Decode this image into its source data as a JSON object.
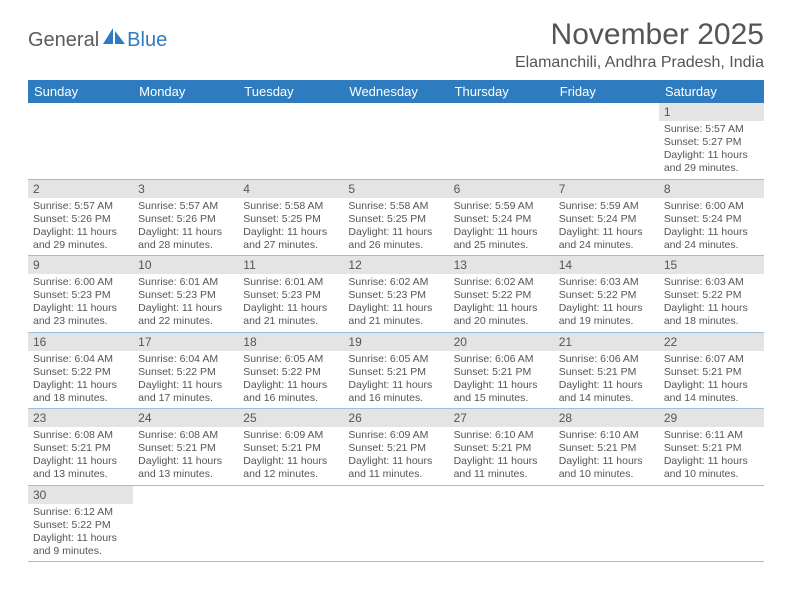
{
  "brand": {
    "part1": "General",
    "part2": "Blue"
  },
  "title": "November 2025",
  "location": "Elamanchili, Andhra Pradesh, India",
  "colors": {
    "header_bg": "#2f7bbf",
    "header_text": "#ffffff",
    "daynum_bg": "#e4e4e4",
    "border": "#9bbfe0",
    "text": "#555555",
    "page_bg": "#ffffff"
  },
  "weekdays": [
    "Sunday",
    "Monday",
    "Tuesday",
    "Wednesday",
    "Thursday",
    "Friday",
    "Saturday"
  ],
  "first_weekday_index": 6,
  "days": [
    {
      "n": 1,
      "sr": "5:57 AM",
      "ss": "5:27 PM",
      "dl": "11 hours and 29 minutes."
    },
    {
      "n": 2,
      "sr": "5:57 AM",
      "ss": "5:26 PM",
      "dl": "11 hours and 29 minutes."
    },
    {
      "n": 3,
      "sr": "5:57 AM",
      "ss": "5:26 PM",
      "dl": "11 hours and 28 minutes."
    },
    {
      "n": 4,
      "sr": "5:58 AM",
      "ss": "5:25 PM",
      "dl": "11 hours and 27 minutes."
    },
    {
      "n": 5,
      "sr": "5:58 AM",
      "ss": "5:25 PM",
      "dl": "11 hours and 26 minutes."
    },
    {
      "n": 6,
      "sr": "5:59 AM",
      "ss": "5:24 PM",
      "dl": "11 hours and 25 minutes."
    },
    {
      "n": 7,
      "sr": "5:59 AM",
      "ss": "5:24 PM",
      "dl": "11 hours and 24 minutes."
    },
    {
      "n": 8,
      "sr": "6:00 AM",
      "ss": "5:24 PM",
      "dl": "11 hours and 24 minutes."
    },
    {
      "n": 9,
      "sr": "6:00 AM",
      "ss": "5:23 PM",
      "dl": "11 hours and 23 minutes."
    },
    {
      "n": 10,
      "sr": "6:01 AM",
      "ss": "5:23 PM",
      "dl": "11 hours and 22 minutes."
    },
    {
      "n": 11,
      "sr": "6:01 AM",
      "ss": "5:23 PM",
      "dl": "11 hours and 21 minutes."
    },
    {
      "n": 12,
      "sr": "6:02 AM",
      "ss": "5:23 PM",
      "dl": "11 hours and 21 minutes."
    },
    {
      "n": 13,
      "sr": "6:02 AM",
      "ss": "5:22 PM",
      "dl": "11 hours and 20 minutes."
    },
    {
      "n": 14,
      "sr": "6:03 AM",
      "ss": "5:22 PM",
      "dl": "11 hours and 19 minutes."
    },
    {
      "n": 15,
      "sr": "6:03 AM",
      "ss": "5:22 PM",
      "dl": "11 hours and 18 minutes."
    },
    {
      "n": 16,
      "sr": "6:04 AM",
      "ss": "5:22 PM",
      "dl": "11 hours and 18 minutes."
    },
    {
      "n": 17,
      "sr": "6:04 AM",
      "ss": "5:22 PM",
      "dl": "11 hours and 17 minutes."
    },
    {
      "n": 18,
      "sr": "6:05 AM",
      "ss": "5:22 PM",
      "dl": "11 hours and 16 minutes."
    },
    {
      "n": 19,
      "sr": "6:05 AM",
      "ss": "5:21 PM",
      "dl": "11 hours and 16 minutes."
    },
    {
      "n": 20,
      "sr": "6:06 AM",
      "ss": "5:21 PM",
      "dl": "11 hours and 15 minutes."
    },
    {
      "n": 21,
      "sr": "6:06 AM",
      "ss": "5:21 PM",
      "dl": "11 hours and 14 minutes."
    },
    {
      "n": 22,
      "sr": "6:07 AM",
      "ss": "5:21 PM",
      "dl": "11 hours and 14 minutes."
    },
    {
      "n": 23,
      "sr": "6:08 AM",
      "ss": "5:21 PM",
      "dl": "11 hours and 13 minutes."
    },
    {
      "n": 24,
      "sr": "6:08 AM",
      "ss": "5:21 PM",
      "dl": "11 hours and 13 minutes."
    },
    {
      "n": 25,
      "sr": "6:09 AM",
      "ss": "5:21 PM",
      "dl": "11 hours and 12 minutes."
    },
    {
      "n": 26,
      "sr": "6:09 AM",
      "ss": "5:21 PM",
      "dl": "11 hours and 11 minutes."
    },
    {
      "n": 27,
      "sr": "6:10 AM",
      "ss": "5:21 PM",
      "dl": "11 hours and 11 minutes."
    },
    {
      "n": 28,
      "sr": "6:10 AM",
      "ss": "5:21 PM",
      "dl": "11 hours and 10 minutes."
    },
    {
      "n": 29,
      "sr": "6:11 AM",
      "ss": "5:21 PM",
      "dl": "11 hours and 10 minutes."
    },
    {
      "n": 30,
      "sr": "6:12 AM",
      "ss": "5:22 PM",
      "dl": "11 hours and 9 minutes."
    }
  ],
  "labels": {
    "sunrise": "Sunrise:",
    "sunset": "Sunset:",
    "daylight": "Daylight:"
  }
}
